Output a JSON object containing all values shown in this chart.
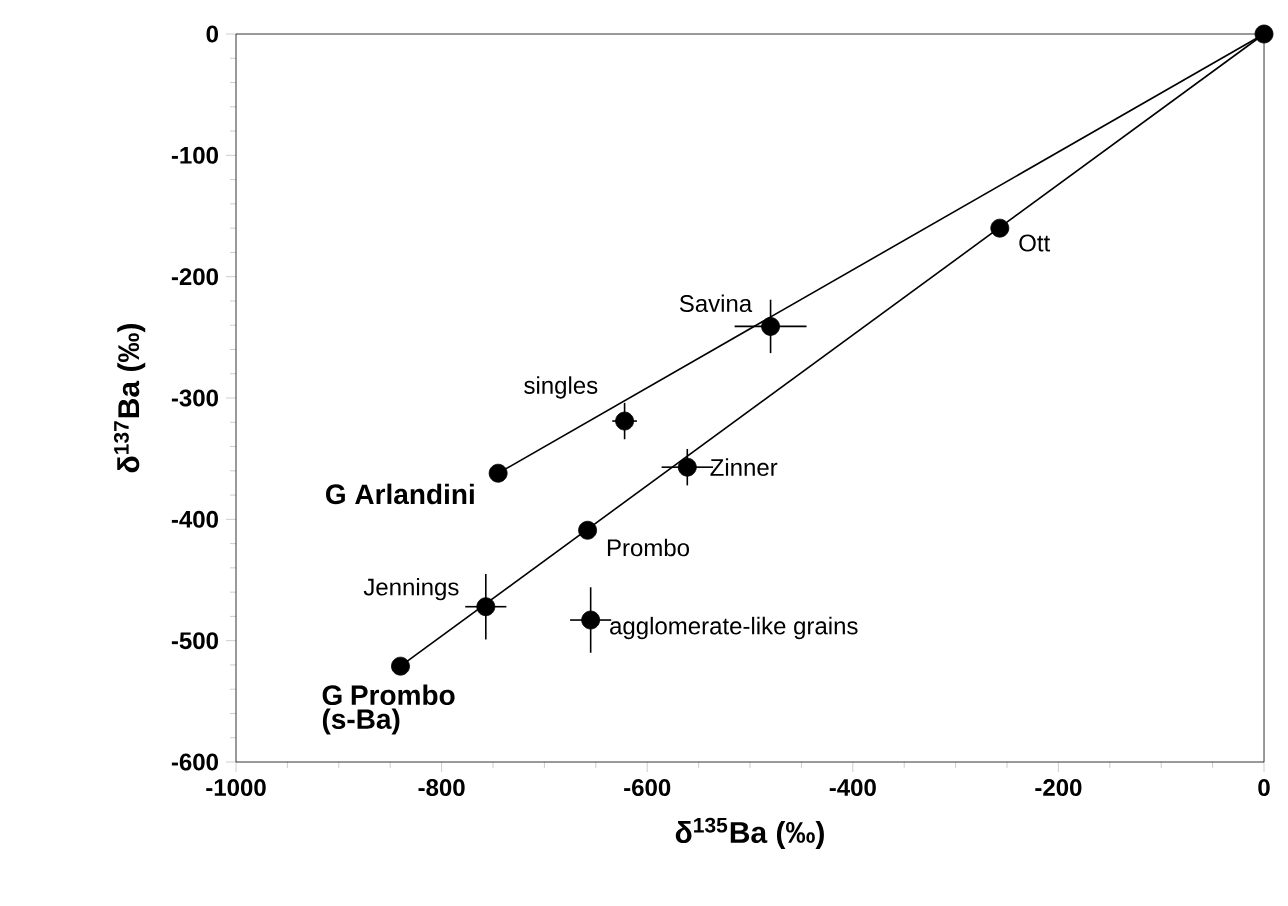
{
  "chart_data": {
    "type": "scatter",
    "xlabel": "δ$^{135}$Ba (‰)",
    "ylabel": "δ$^{137}$Ba (‰)",
    "series": [
      {
        "type": "line",
        "color": "#000000",
        "x": [
          -745,
          0
        ],
        "values": [
          -362,
          0
        ]
      },
      {
        "type": "line",
        "color": "#000000",
        "x": [
          -840,
          0
        ],
        "values": [
          -521,
          0
        ]
      },
      {
        "color": "#000000",
        "marker": "circle",
        "x": [
          0,
          -257,
          -480,
          -622,
          -745,
          -561,
          -658,
          -757,
          -655,
          -840
        ],
        "values": [
          0,
          -160,
          -241,
          -319,
          -362,
          -357,
          -409,
          -472,
          -483,
          -521
        ],
        "errors": [
          null,
          null,
          22,
          15,
          null,
          15,
          null,
          27,
          27,
          null
        ],
        "xerrors": [
          null,
          null,
          35,
          12,
          null,
          25,
          null,
          20,
          20,
          null
        ]
      }
    ],
    "annotations": [
      {
        "text": "Ott",
        "x": -257,
        "y": -160
      },
      {
        "text": "Savina",
        "x": -480,
        "y": -241
      },
      {
        "text": "singles",
        "x": -622,
        "y": -319
      },
      {
        "text": "G Arlandini",
        "x": -745,
        "y": -362
      },
      {
        "text": "Zinner",
        "x": -561,
        "y": -357
      },
      {
        "text": "Prombo",
        "x": -658,
        "y": -409
      },
      {
        "text": "Jennings",
        "x": -757,
        "y": -472
      },
      {
        "text": "agglomerate-like grains",
        "x": -655,
        "y": -483
      },
      {
        "text": "G Prombo (s-Ba)",
        "x": -840,
        "y": -521
      }
    ],
    "xlim": [
      -1000,
      0
    ],
    "xticks": [
      -1000,
      -800,
      -600,
      -400,
      -200,
      0
    ],
    "ylim": [
      -600,
      0
    ],
    "yticks": [
      -600,
      -500,
      -400,
      -300,
      -200,
      -100,
      0
    ],
    "grid": false
  }
}
